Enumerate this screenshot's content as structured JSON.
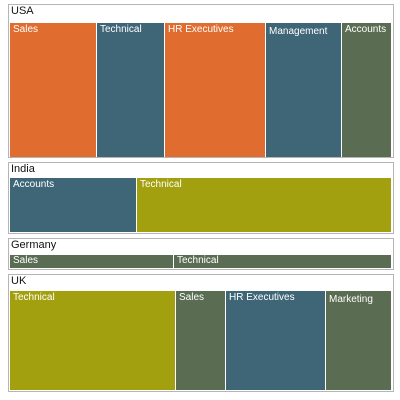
{
  "chart_data": {
    "type": "treemap",
    "groups": [
      {
        "name": "USA",
        "items": [
          {
            "label": "Sales",
            "color": "#e06d2f"
          },
          {
            "label": "Technical",
            "color": "#3f6677"
          },
          {
            "label": "HR Executives",
            "color": "#e06d2f"
          },
          {
            "label": "Management",
            "color": "#3f6677"
          },
          {
            "label": "Accounts",
            "color": "#5a6c51"
          }
        ]
      },
      {
        "name": "India",
        "items": [
          {
            "label": "Accounts",
            "color": "#3f6677"
          },
          {
            "label": "Technical",
            "color": "#a3a010"
          }
        ]
      },
      {
        "name": "Germany",
        "items": [
          {
            "label": "Sales",
            "color": "#5a6c51"
          },
          {
            "label": "Technical",
            "color": "#5a6c51"
          }
        ]
      },
      {
        "name": "UK",
        "items": [
          {
            "label": "Technical",
            "color": "#a3a010"
          },
          {
            "label": "Sales",
            "color": "#5a6c51"
          },
          {
            "label": "HR Executives",
            "color": "#3f6677"
          },
          {
            "label": "Marketing",
            "color": "#5a6c51"
          }
        ]
      }
    ]
  }
}
